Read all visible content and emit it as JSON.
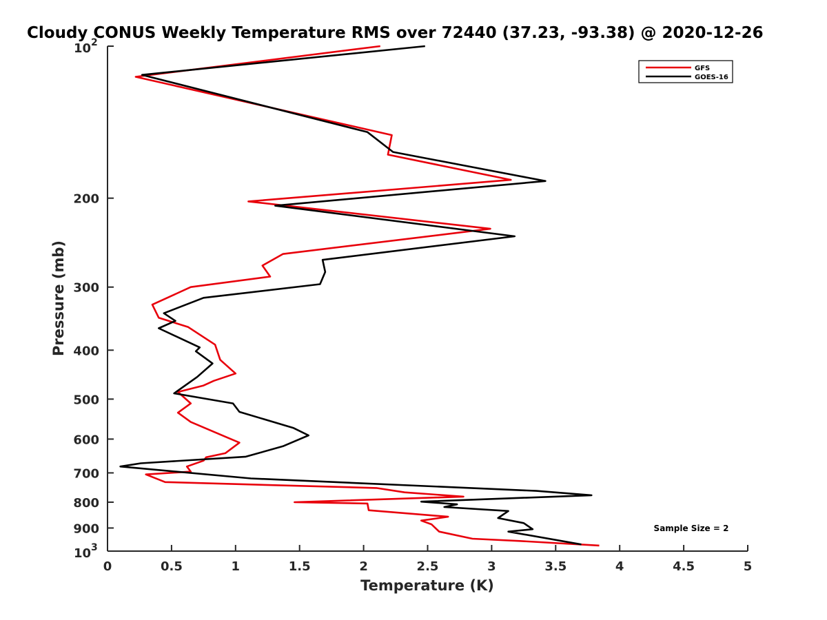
{
  "chart_data": {
    "type": "line",
    "title": "Cloudy CONUS Weekly Temperature RMS over 72440 (37.23, -93.38) @ 2020-12-26",
    "xlabel": "Temperature (K)",
    "ylabel": "Pressure (mb)",
    "xlim": [
      0,
      5
    ],
    "ylim": [
      1000,
      100
    ],
    "y_scale": "log",
    "y_reversed": true,
    "grid": false,
    "legend_position": "top-right",
    "x_ticks": [
      "0",
      "0.5",
      "1",
      "1.5",
      "2",
      "2.5",
      "3",
      "3.5",
      "4",
      "4.5",
      "5"
    ],
    "y_ticks": [
      {
        "value": 100,
        "base": "10",
        "exp": "2"
      },
      {
        "value": 200,
        "label": "200"
      },
      {
        "value": 300,
        "label": "300"
      },
      {
        "value": 400,
        "label": "400"
      },
      {
        "value": 500,
        "label": "500"
      },
      {
        "value": 600,
        "label": "600"
      },
      {
        "value": 700,
        "label": "700"
      },
      {
        "value": 800,
        "label": "800"
      },
      {
        "value": 900,
        "label": "900"
      },
      {
        "value": 1000,
        "base": "10",
        "exp": "3"
      }
    ],
    "annotation": "Sample Size = 2",
    "series": [
      {
        "name": "GFS",
        "color": "#e8000b",
        "points": [
          [
            2.13,
            100
          ],
          [
            0.22,
            115
          ],
          [
            2.22,
            150
          ],
          [
            2.19,
            164
          ],
          [
            3.15,
            184
          ],
          [
            1.1,
            203
          ],
          [
            2.99,
            230
          ],
          [
            1.37,
            258
          ],
          [
            1.21,
            272
          ],
          [
            1.27,
            286
          ],
          [
            0.65,
            300
          ],
          [
            0.35,
            325
          ],
          [
            0.4,
            345
          ],
          [
            0.63,
            360
          ],
          [
            0.84,
            390
          ],
          [
            0.88,
            418
          ],
          [
            1.0,
            445
          ],
          [
            0.83,
            460
          ],
          [
            0.75,
            470
          ],
          [
            0.55,
            484
          ],
          [
            0.65,
            510
          ],
          [
            0.55,
            532
          ],
          [
            0.65,
            555
          ],
          [
            1.03,
            610
          ],
          [
            0.92,
            640
          ],
          [
            0.77,
            652
          ],
          [
            0.75,
            662
          ],
          [
            0.62,
            680
          ],
          [
            0.65,
            696
          ],
          [
            0.3,
            705
          ],
          [
            0.45,
            730
          ],
          [
            2.1,
            750
          ],
          [
            2.32,
            765
          ],
          [
            2.78,
            780
          ],
          [
            1.46,
            800
          ],
          [
            2.03,
            805
          ],
          [
            2.04,
            830
          ],
          [
            2.66,
            855
          ],
          [
            2.45,
            870
          ],
          [
            2.53,
            885
          ],
          [
            2.59,
            915
          ],
          [
            2.85,
            945
          ],
          [
            3.22,
            955
          ],
          [
            3.84,
            975
          ]
        ]
      },
      {
        "name": "GOES-16",
        "color": "#000000",
        "points": [
          [
            2.48,
            100
          ],
          [
            0.27,
            114
          ],
          [
            2.03,
            148
          ],
          [
            2.23,
            162
          ],
          [
            3.42,
            185
          ],
          [
            1.31,
            207
          ],
          [
            3.18,
            238
          ],
          [
            1.68,
            265
          ],
          [
            1.7,
            280
          ],
          [
            1.66,
            296
          ],
          [
            0.75,
            315
          ],
          [
            0.44,
            338
          ],
          [
            0.53,
            350
          ],
          [
            0.4,
            362
          ],
          [
            0.72,
            395
          ],
          [
            0.69,
            402
          ],
          [
            0.82,
            425
          ],
          [
            0.7,
            452
          ],
          [
            0.52,
            487
          ],
          [
            0.98,
            510
          ],
          [
            1.03,
            530
          ],
          [
            1.45,
            570
          ],
          [
            1.57,
            590
          ],
          [
            1.37,
            620
          ],
          [
            1.08,
            650
          ],
          [
            0.26,
            670
          ],
          [
            0.1,
            680
          ],
          [
            1.12,
            718
          ],
          [
            3.35,
            760
          ],
          [
            3.78,
            775
          ],
          [
            2.45,
            798
          ],
          [
            2.73,
            808
          ],
          [
            2.63,
            818
          ],
          [
            3.13,
            833
          ],
          [
            3.05,
            860
          ],
          [
            3.25,
            880
          ],
          [
            3.32,
            905
          ],
          [
            3.13,
            915
          ],
          [
            3.7,
            970
          ]
        ]
      }
    ]
  }
}
